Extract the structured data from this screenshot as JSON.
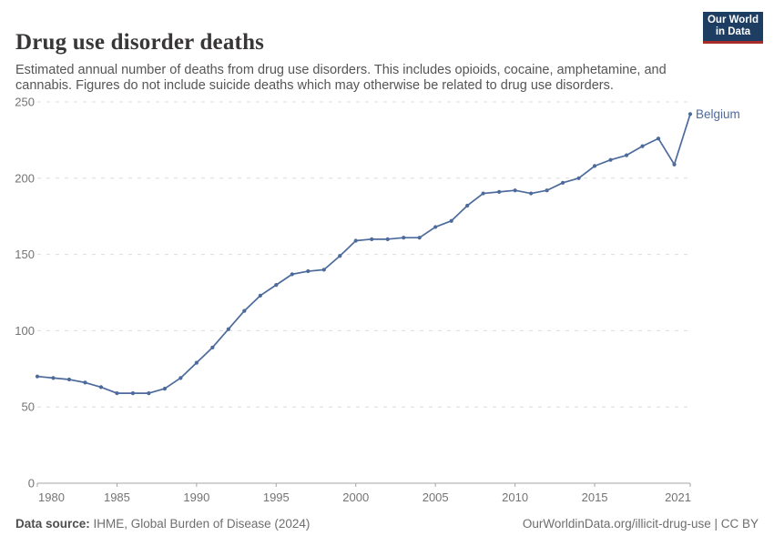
{
  "header": {
    "title": "Drug use disorder deaths",
    "subtitle": "Estimated annual number of deaths from drug use disorders. This includes opioids, cocaine, amphetamine, and cannabis. Figures do not include suicide deaths which may otherwise be related to drug use disorders."
  },
  "logo": {
    "line1": "Our World",
    "line2": "in Data",
    "bg": "#1d3d63",
    "accent": "#a82d28"
  },
  "chart_data": {
    "type": "line",
    "title": "Drug use disorder deaths",
    "xlabel": "",
    "ylabel": "",
    "xlim": [
      1980,
      2021
    ],
    "ylim": [
      0,
      250
    ],
    "xticks": [
      1980,
      1985,
      1990,
      1995,
      2000,
      2005,
      2010,
      2015,
      2021
    ],
    "yticks": [
      0,
      50,
      100,
      150,
      200,
      250
    ],
    "grid": "horizontal-dashed",
    "legend_position": "end-of-line-label",
    "series": [
      {
        "name": "Belgium",
        "color": "#4c6a9c",
        "x": [
          1980,
          1981,
          1982,
          1983,
          1984,
          1985,
          1986,
          1987,
          1988,
          1989,
          1990,
          1991,
          1992,
          1993,
          1994,
          1995,
          1996,
          1997,
          1998,
          1999,
          2000,
          2001,
          2002,
          2003,
          2004,
          2005,
          2006,
          2007,
          2008,
          2009,
          2010,
          2011,
          2012,
          2013,
          2014,
          2015,
          2016,
          2017,
          2018,
          2019,
          2020,
          2021
        ],
        "values": [
          70,
          69,
          68,
          66,
          63,
          59,
          59,
          59,
          62,
          69,
          79,
          89,
          101,
          113,
          123,
          130,
          137,
          139,
          140,
          149,
          159,
          160,
          160,
          161,
          161,
          168,
          172,
          182,
          190,
          191,
          192,
          190,
          192,
          197,
          200,
          208,
          212,
          215,
          221,
          226,
          209,
          242
        ]
      }
    ]
  },
  "footer": {
    "source_label": "Data source:",
    "source_value": " IHME, Global Burden of Disease (2024)",
    "credit": "OurWorldinData.org/illicit-drug-use | CC BY"
  }
}
